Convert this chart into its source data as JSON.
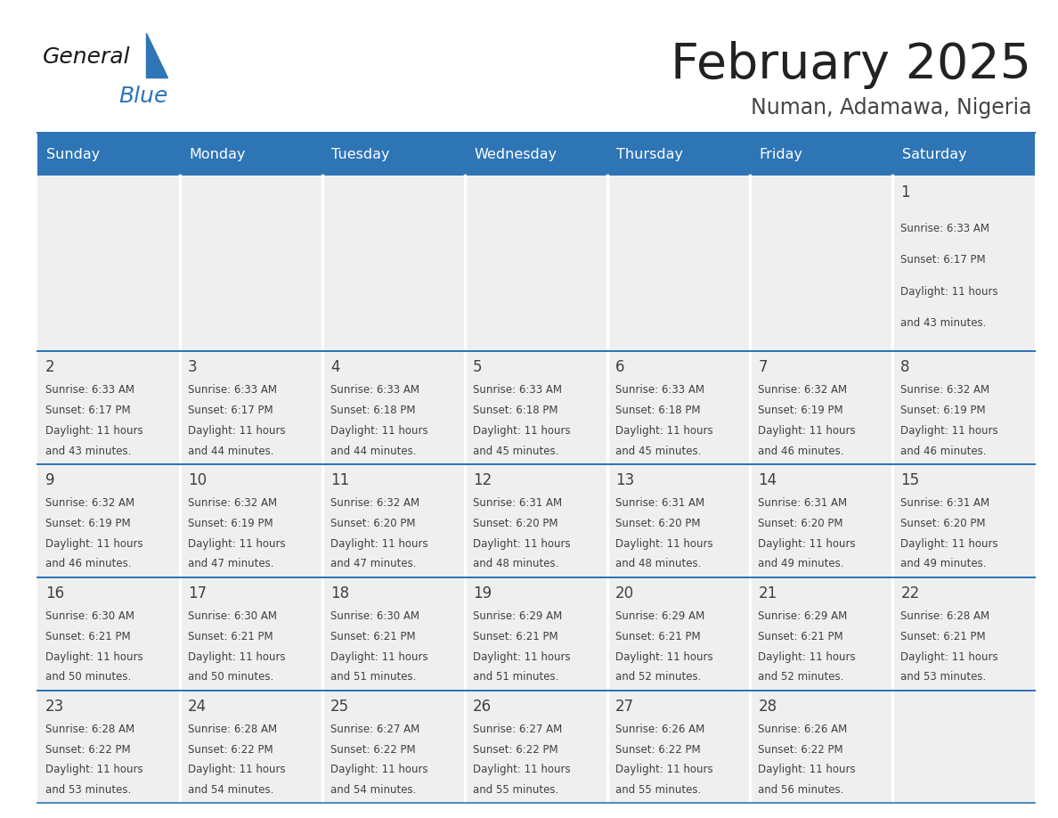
{
  "title": "February 2025",
  "subtitle": "Numan, Adamawa, Nigeria",
  "header_bg": "#2E75B6",
  "header_text": "#FFFFFF",
  "cell_bg": "#EFEFEF",
  "row_divider_color": "#2E75B6",
  "col_divider_color": "#FFFFFF",
  "day_names": [
    "Sunday",
    "Monday",
    "Tuesday",
    "Wednesday",
    "Thursday",
    "Friday",
    "Saturday"
  ],
  "text_color": "#404040",
  "day_num_color": "#404040",
  "logo_general_color": "#1A1A1A",
  "logo_blue_color": "#2E75B6",
  "calendar_data": [
    [
      null,
      null,
      null,
      null,
      null,
      null,
      {
        "day": 1,
        "sunrise": "6:33 AM",
        "sunset": "6:17 PM",
        "daylight": "11 hours and 43 minutes."
      }
    ],
    [
      {
        "day": 2,
        "sunrise": "6:33 AM",
        "sunset": "6:17 PM",
        "daylight": "11 hours and 43 minutes."
      },
      {
        "day": 3,
        "sunrise": "6:33 AM",
        "sunset": "6:17 PM",
        "daylight": "11 hours and 44 minutes."
      },
      {
        "day": 4,
        "sunrise": "6:33 AM",
        "sunset": "6:18 PM",
        "daylight": "11 hours and 44 minutes."
      },
      {
        "day": 5,
        "sunrise": "6:33 AM",
        "sunset": "6:18 PM",
        "daylight": "11 hours and 45 minutes."
      },
      {
        "day": 6,
        "sunrise": "6:33 AM",
        "sunset": "6:18 PM",
        "daylight": "11 hours and 45 minutes."
      },
      {
        "day": 7,
        "sunrise": "6:32 AM",
        "sunset": "6:19 PM",
        "daylight": "11 hours and 46 minutes."
      },
      {
        "day": 8,
        "sunrise": "6:32 AM",
        "sunset": "6:19 PM",
        "daylight": "11 hours and 46 minutes."
      }
    ],
    [
      {
        "day": 9,
        "sunrise": "6:32 AM",
        "sunset": "6:19 PM",
        "daylight": "11 hours and 46 minutes."
      },
      {
        "day": 10,
        "sunrise": "6:32 AM",
        "sunset": "6:19 PM",
        "daylight": "11 hours and 47 minutes."
      },
      {
        "day": 11,
        "sunrise": "6:32 AM",
        "sunset": "6:20 PM",
        "daylight": "11 hours and 47 minutes."
      },
      {
        "day": 12,
        "sunrise": "6:31 AM",
        "sunset": "6:20 PM",
        "daylight": "11 hours and 48 minutes."
      },
      {
        "day": 13,
        "sunrise": "6:31 AM",
        "sunset": "6:20 PM",
        "daylight": "11 hours and 48 minutes."
      },
      {
        "day": 14,
        "sunrise": "6:31 AM",
        "sunset": "6:20 PM",
        "daylight": "11 hours and 49 minutes."
      },
      {
        "day": 15,
        "sunrise": "6:31 AM",
        "sunset": "6:20 PM",
        "daylight": "11 hours and 49 minutes."
      }
    ],
    [
      {
        "day": 16,
        "sunrise": "6:30 AM",
        "sunset": "6:21 PM",
        "daylight": "11 hours and 50 minutes."
      },
      {
        "day": 17,
        "sunrise": "6:30 AM",
        "sunset": "6:21 PM",
        "daylight": "11 hours and 50 minutes."
      },
      {
        "day": 18,
        "sunrise": "6:30 AM",
        "sunset": "6:21 PM",
        "daylight": "11 hours and 51 minutes."
      },
      {
        "day": 19,
        "sunrise": "6:29 AM",
        "sunset": "6:21 PM",
        "daylight": "11 hours and 51 minutes."
      },
      {
        "day": 20,
        "sunrise": "6:29 AM",
        "sunset": "6:21 PM",
        "daylight": "11 hours and 52 minutes."
      },
      {
        "day": 21,
        "sunrise": "6:29 AM",
        "sunset": "6:21 PM",
        "daylight": "11 hours and 52 minutes."
      },
      {
        "day": 22,
        "sunrise": "6:28 AM",
        "sunset": "6:21 PM",
        "daylight": "11 hours and 53 minutes."
      }
    ],
    [
      {
        "day": 23,
        "sunrise": "6:28 AM",
        "sunset": "6:22 PM",
        "daylight": "11 hours and 53 minutes."
      },
      {
        "day": 24,
        "sunrise": "6:28 AM",
        "sunset": "6:22 PM",
        "daylight": "11 hours and 54 minutes."
      },
      {
        "day": 25,
        "sunrise": "6:27 AM",
        "sunset": "6:22 PM",
        "daylight": "11 hours and 54 minutes."
      },
      {
        "day": 26,
        "sunrise": "6:27 AM",
        "sunset": "6:22 PM",
        "daylight": "11 hours and 55 minutes."
      },
      {
        "day": 27,
        "sunrise": "6:26 AM",
        "sunset": "6:22 PM",
        "daylight": "11 hours and 55 minutes."
      },
      {
        "day": 28,
        "sunrise": "6:26 AM",
        "sunset": "6:22 PM",
        "daylight": "11 hours and 56 minutes."
      },
      null
    ]
  ],
  "fig_width": 11.88,
  "fig_height": 9.18,
  "dpi": 100
}
